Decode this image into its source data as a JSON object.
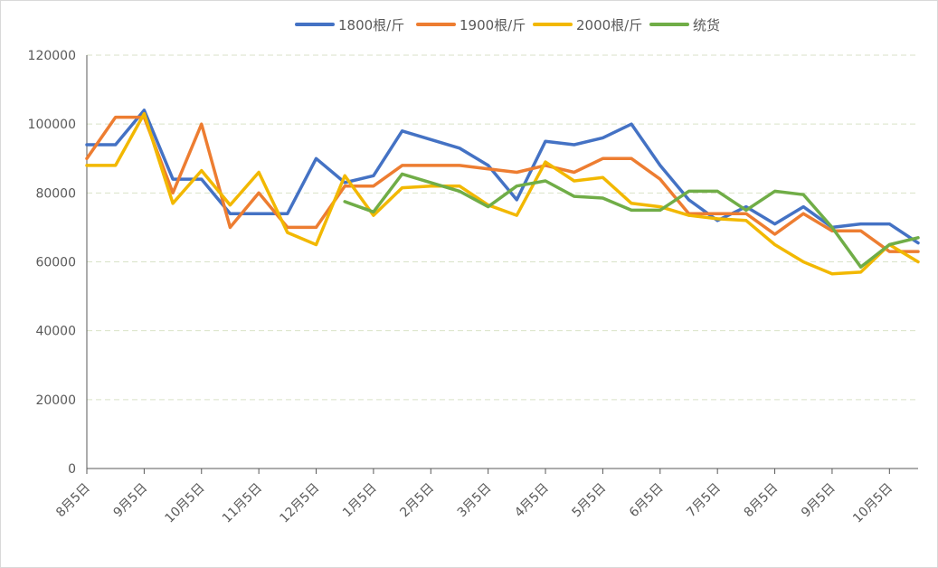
{
  "chart_data": {
    "type": "line",
    "title": "",
    "xlabel": "",
    "ylabel": "",
    "ylim": [
      0,
      120000
    ],
    "yticks": [
      0,
      20000,
      40000,
      60000,
      80000,
      100000,
      120000
    ],
    "grid": "horizontal dashed",
    "legend_position": "top-center",
    "x_tick_labels": [
      "8月5日",
      "9月5日",
      "10月5日",
      "11月5日",
      "12月5日",
      "1月5日",
      "2月5日",
      "3月5日",
      "4月5日",
      "5月5日",
      "6月5日",
      "7月5日",
      "8月5日",
      "9月5日",
      "10月5日"
    ],
    "x_tick_label_index": [
      0,
      2,
      4,
      6,
      8,
      10,
      12,
      14,
      16,
      18,
      20,
      22,
      24,
      26,
      28
    ],
    "x_count": 30,
    "series": [
      {
        "name": "1800根/斤",
        "color": "#4472C4",
        "values": [
          94000,
          94000,
          104000,
          84000,
          84000,
          74000,
          74000,
          74000,
          90000,
          83000,
          85000,
          98000,
          95500,
          93000,
          88000,
          78000,
          95000,
          94000,
          96000,
          100000,
          88000,
          78000,
          72000,
          76000,
          71000,
          76000,
          70000,
          71000,
          71000,
          65500
        ]
      },
      {
        "name": "1900根/斤",
        "color": "#ED7D31",
        "values": [
          90000,
          102000,
          102000,
          80000,
          100000,
          70000,
          80000,
          70000,
          70000,
          82000,
          82000,
          88000,
          88000,
          88000,
          87000,
          86000,
          88000,
          86000,
          90000,
          90000,
          84000,
          74000,
          74000,
          74000,
          68000,
          74000,
          69000,
          69000,
          63000,
          63000
        ]
      },
      {
        "name": "2000根/斤",
        "color": "#F2B800",
        "values": [
          88000,
          88000,
          103000,
          77000,
          86500,
          76500,
          86000,
          68500,
          65000,
          85000,
          73500,
          81500,
          82000,
          82000,
          76500,
          73500,
          89000,
          83500,
          84500,
          77000,
          76000,
          73500,
          72500,
          72000,
          65000,
          60000,
          56500,
          57000,
          65000,
          60000
        ]
      },
      {
        "name": "统货",
        "color": "#70AD47",
        "values": [
          null,
          null,
          null,
          null,
          null,
          null,
          null,
          null,
          null,
          77500,
          74500,
          85500,
          83000,
          80500,
          76000,
          82000,
          83500,
          79000,
          78500,
          75000,
          75000,
          80500,
          80500,
          75000,
          80500,
          79500,
          70000,
          58500,
          65000,
          67000
        ]
      }
    ]
  }
}
